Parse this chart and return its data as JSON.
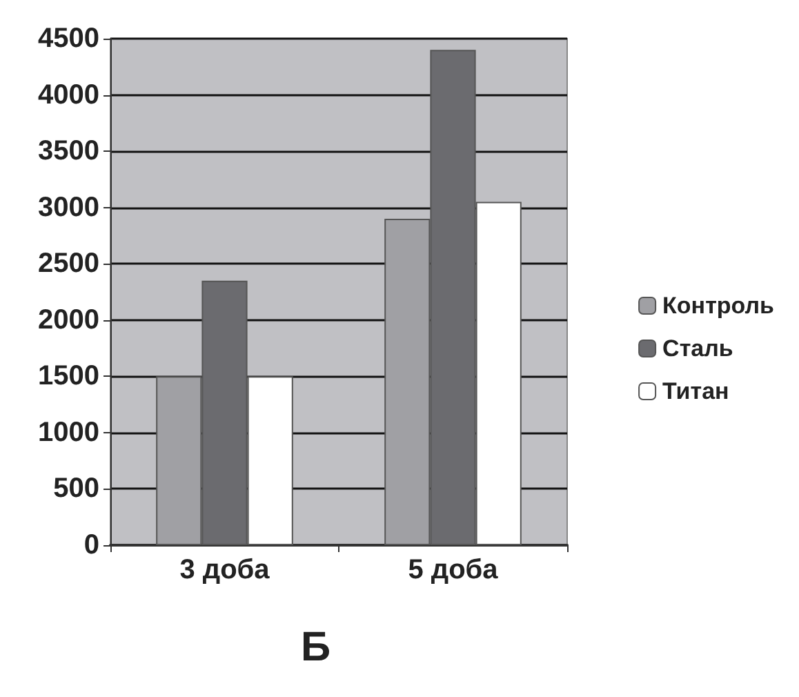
{
  "chart_data": {
    "type": "bar",
    "title": "Б",
    "categories": [
      "3 доба",
      "5 доба"
    ],
    "series": [
      {
        "name": "Контроль",
        "color": "#a0a0a4",
        "values": [
          1500,
          2900
        ]
      },
      {
        "name": "Сталь",
        "color": "#6b6b6f",
        "values": [
          2350,
          4400
        ]
      },
      {
        "name": "Титан",
        "color": "#ffffff",
        "values": [
          1500,
          3050
        ]
      }
    ],
    "ylim": [
      0,
      4500
    ],
    "yticks": [
      0,
      500,
      1000,
      1500,
      2000,
      2500,
      3000,
      3500,
      4000,
      4500
    ],
    "grid": "y",
    "legend": "right"
  }
}
